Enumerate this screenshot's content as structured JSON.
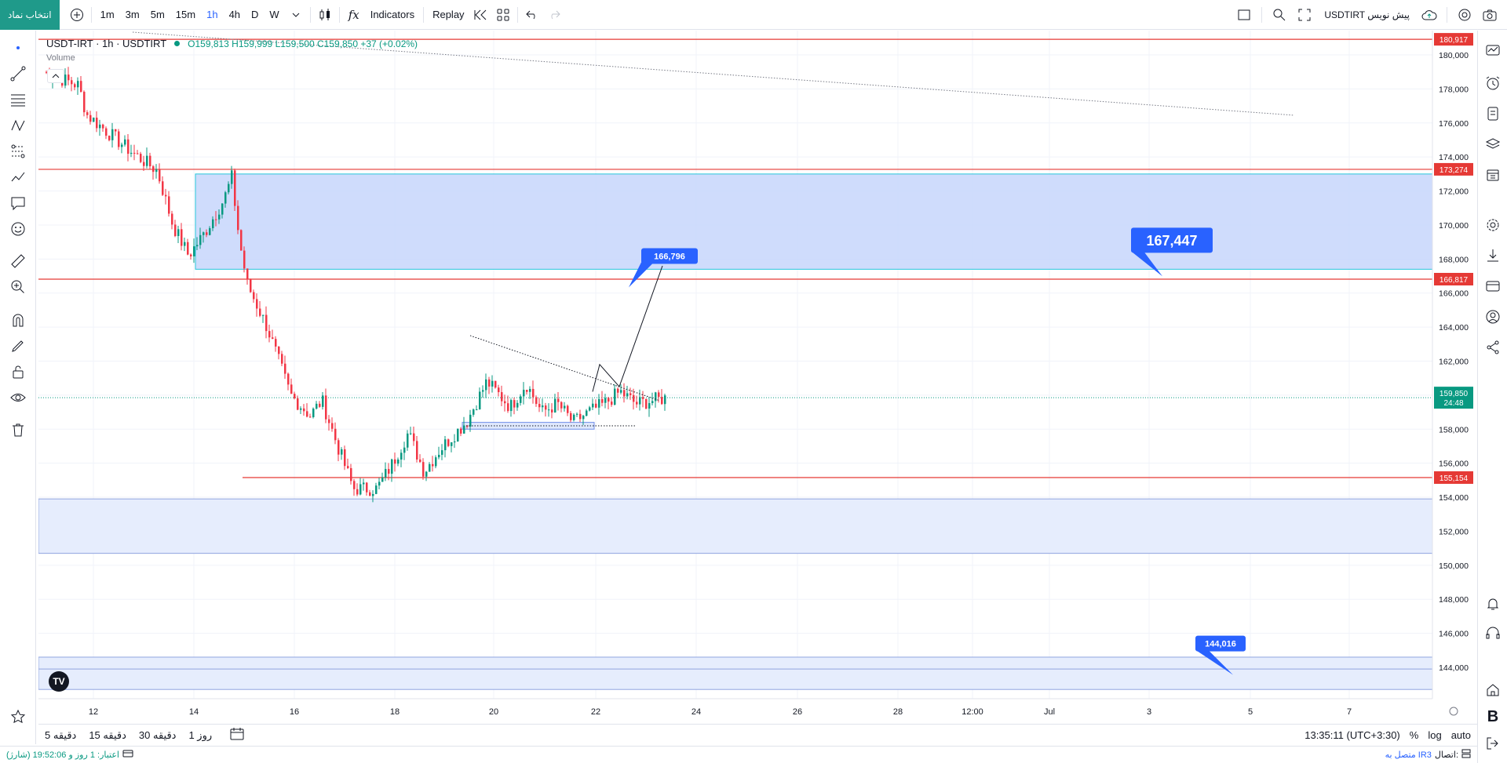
{
  "topbar": {
    "symbol_button": "انتخاب نماد",
    "intervals": [
      "1m",
      "3m",
      "5m",
      "15m",
      "1h",
      "4h",
      "D",
      "W"
    ],
    "active_interval": "1h",
    "indicators_label": "Indicators",
    "replay_label": "Replay",
    "right_title": "USDTIRT پیش نویس"
  },
  "legend": {
    "symbol": "USDT-IRT · 1h · USDTIRT",
    "ohlc": "O159,813 H159,999 L159,500 C159,850 +37 (+0.02%)",
    "volume": "Volume"
  },
  "price_axis": {
    "ticks": [
      "180,000",
      "178,000",
      "176,000",
      "174,000",
      "172,000",
      "170,000",
      "168,000",
      "166,000",
      "164,000",
      "162,000",
      "160,000",
      "158,000",
      "156,000",
      "154,000",
      "152,000",
      "150,000",
      "148,000",
      "146,000",
      "144,000"
    ]
  },
  "time_axis": {
    "ticks": [
      "12",
      "14",
      "16",
      "18",
      "20",
      "22",
      "24",
      "26",
      "28",
      "12:00",
      "Jul",
      "3",
      "5",
      "7"
    ]
  },
  "levels": [
    {
      "label": "180,917",
      "price": 180917
    },
    {
      "label": "173,274",
      "price": 173274
    },
    {
      "label": "166,817",
      "price": 166817
    },
    {
      "label": "155,154",
      "price": 155154
    }
  ],
  "current_price": {
    "label": "159,850",
    "countdown": "24:48"
  },
  "annotations": [
    {
      "label": "166,796"
    },
    {
      "label": "167,447"
    },
    {
      "label": "144,016"
    }
  ],
  "bottombar": {
    "ranges": [
      "5 دقیقه",
      "15 دقیقه",
      "30 دقیقه",
      "1 روز"
    ],
    "clock": "13:35:11 (UTC+3:30)",
    "percent": "%",
    "log": "log",
    "auto": "auto"
  },
  "statusbar": {
    "credit": "اعتبار: 1 روز و 19:52:06 (شارژ)",
    "connection_label": "اتصال:",
    "connection_value": "متصل به IR3"
  },
  "colors": {
    "up": "#089981",
    "down": "#f23645",
    "level_line": "#e53935",
    "zone_fill": "#c7d6fb",
    "zone_light": "#e6edfd",
    "accent": "#2962ff"
  }
}
